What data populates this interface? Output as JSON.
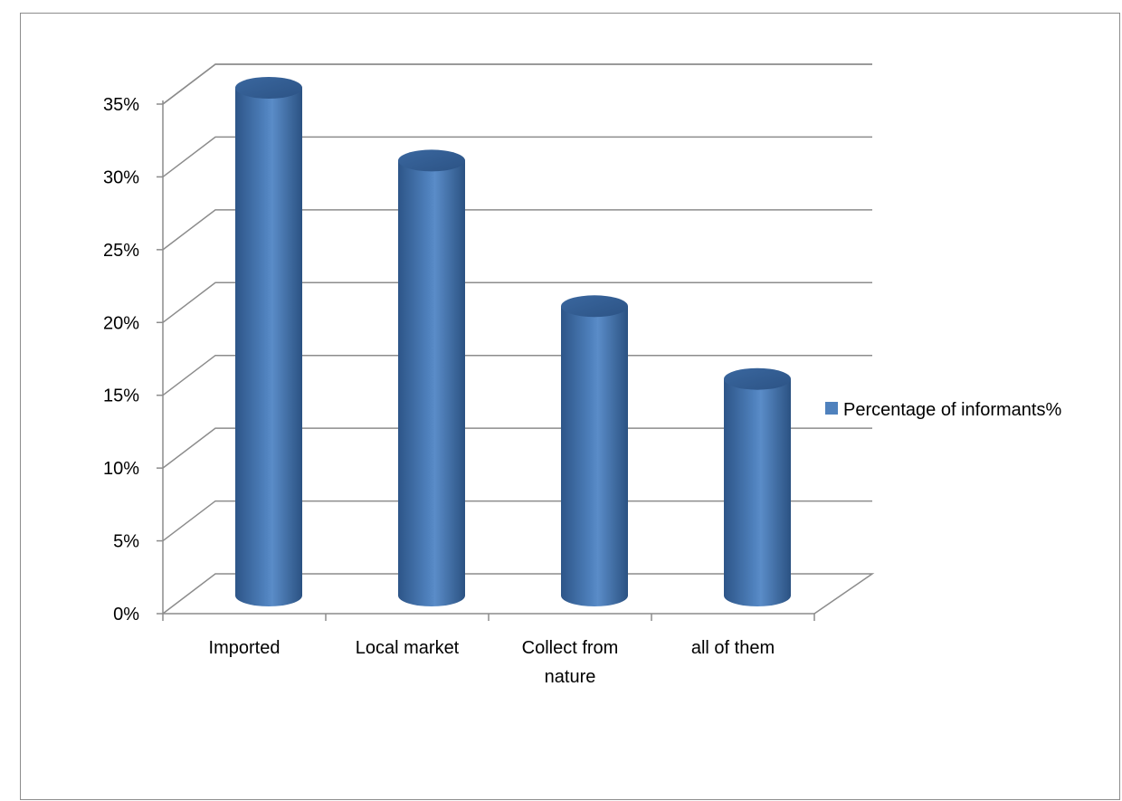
{
  "chart_data": {
    "type": "bar",
    "style": "3d-cylinder",
    "categories": [
      "Imported",
      "Local market",
      "Collect from nature",
      "all of them"
    ],
    "series": [
      {
        "name": "Percentage of informants%",
        "values": [
          35,
          30,
          20,
          15
        ],
        "color": "#4f81bd"
      }
    ],
    "ylim": [
      0,
      35
    ],
    "yticks": [
      "0%",
      "5%",
      "10%",
      "15%",
      "20%",
      "25%",
      "30%",
      "35%"
    ],
    "legend_position": "right",
    "grid": true
  }
}
